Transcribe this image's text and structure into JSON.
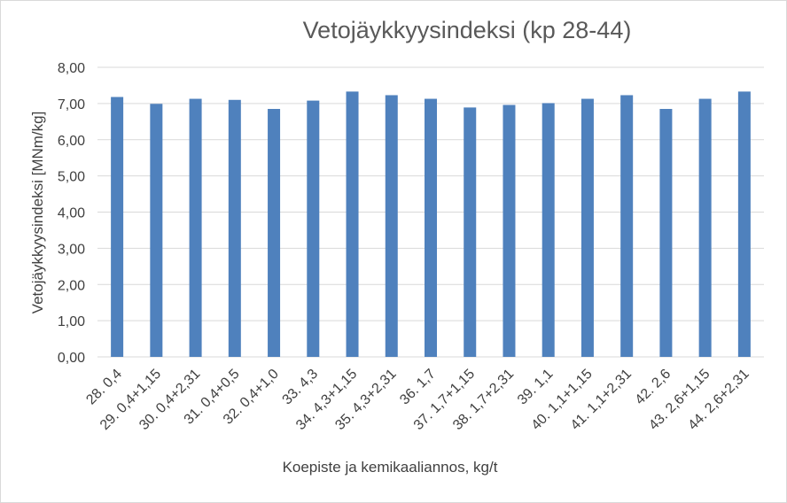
{
  "chart_data": {
    "type": "bar",
    "title": "Vetojäykkyysindeksi  (kp 28-44)",
    "xlabel": "Koepiste ja kemikaaliannos, kg/t",
    "ylabel": "Vetojäykkyysindeksi [MNm/kg]",
    "ylim": [
      0,
      8
    ],
    "yticks": [
      "0,00",
      "1,00",
      "2,00",
      "3,00",
      "4,00",
      "5,00",
      "6,00",
      "7,00",
      "8,00"
    ],
    "grid": true,
    "bar_color": "#4f81bd",
    "categories": [
      "28.   0,4",
      "29.   0,4+1,15",
      "30.   0,4+2,31",
      "31.   0,4+0,5",
      "32.   0,4+1,0",
      "33.   4,3",
      "34.   4,3+1,15",
      "35.   4,3+2,31",
      "36.   1,7",
      "37.   1,7+1,15",
      "38.   1,7+2,31",
      "39.   1,1",
      "40.   1,1+1,15",
      "41.   1,1+2,31",
      "42.   2,6",
      "43.   2,6+1,15",
      "44.   2,6+2,31"
    ],
    "values": [
      7.18,
      6.99,
      7.13,
      7.1,
      6.85,
      7.08,
      7.33,
      7.23,
      7.13,
      6.89,
      6.96,
      7.01,
      7.13,
      7.23,
      6.85,
      7.13,
      7.33
    ]
  }
}
